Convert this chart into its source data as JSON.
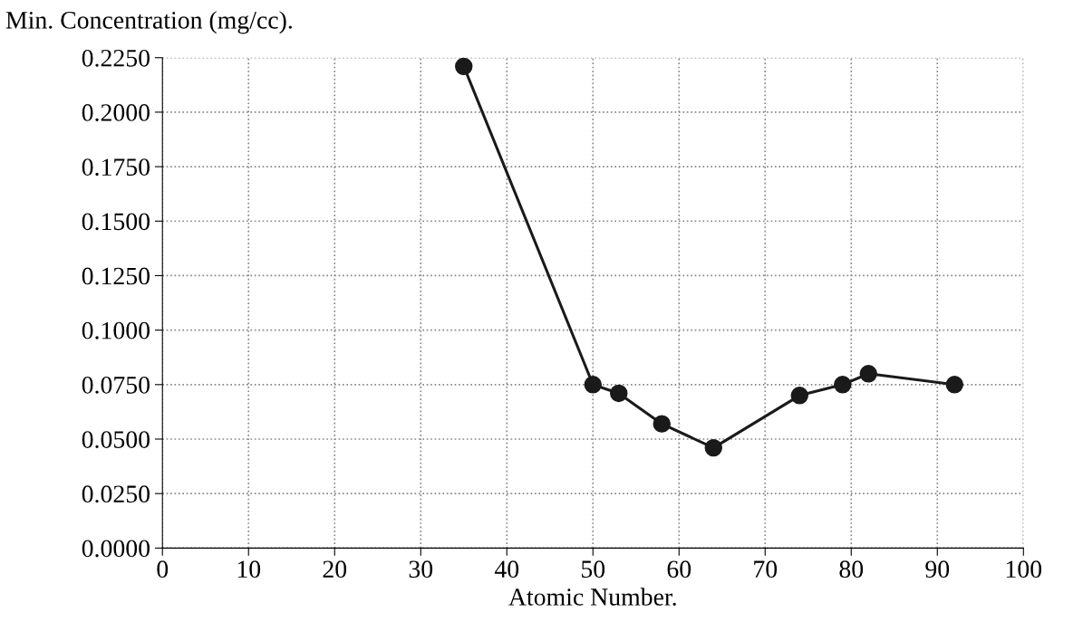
{
  "chart_data": {
    "type": "line",
    "ylabel": "Min. Concentration (mg/cc).",
    "xlabel": "Atomic Number.",
    "x": [
      35,
      50,
      53,
      58,
      64,
      74,
      79,
      82,
      92
    ],
    "series": [
      {
        "color": "#1a1a1a",
        "values": [
          0.221,
          0.075,
          0.071,
          0.057,
          0.046,
          0.07,
          0.075,
          0.08,
          0.075
        ]
      }
    ],
    "xlim": [
      0,
      100
    ],
    "xticks": [
      0,
      10,
      20,
      30,
      40,
      50,
      60,
      70,
      80,
      90,
      100
    ],
    "ylim": [
      0,
      0.225
    ],
    "yticks": [
      {
        "value": 0,
        "label": "0.0000"
      },
      {
        "value": 0.025,
        "label": "0.0250"
      },
      {
        "value": 0.05,
        "label": "0.0500"
      },
      {
        "value": 0.075,
        "label": "0.0750"
      },
      {
        "value": 0.1,
        "label": "0.1000"
      },
      {
        "value": 0.125,
        "label": "0.1250"
      },
      {
        "value": 0.15,
        "label": "0.1500"
      },
      {
        "value": 0.175,
        "label": "0.1750"
      },
      {
        "value": 0.2,
        "label": "0.2000"
      },
      {
        "value": 0.225,
        "label": "0.2250"
      }
    ],
    "grid": true,
    "marker": "circle",
    "line_style": "solid"
  }
}
